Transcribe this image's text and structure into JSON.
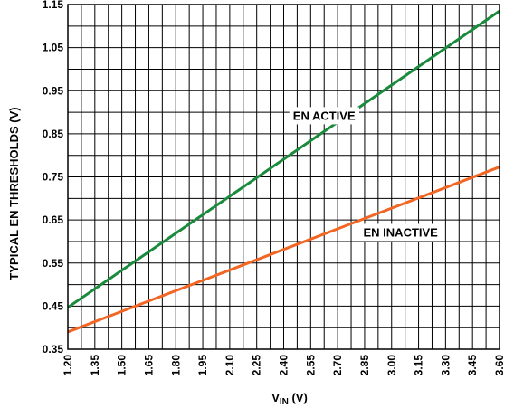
{
  "chart_data": {
    "type": "line",
    "xlabel_main": "V",
    "xlabel_sub": "IN",
    "xlabel_unit": " (V)",
    "ylabel": "TYPICAL EN THRESHOLDS (V)",
    "xlim": [
      1.2,
      3.6
    ],
    "ylim": [
      0.35,
      1.15
    ],
    "x_ticks": [
      "1.20",
      "1.35",
      "1.50",
      "1.65",
      "1.80",
      "1.95",
      "2.10",
      "2.25",
      "2.40",
      "2.55",
      "2.70",
      "2.85",
      "3.00",
      "3.15",
      "3.30",
      "3.45",
      "3.60"
    ],
    "y_ticks": [
      "0.35",
      "0.45",
      "0.55",
      "0.65",
      "0.75",
      "0.85",
      "0.95",
      "1.05",
      "1.15"
    ],
    "grid": true,
    "series": [
      {
        "name": "EN ACTIVE",
        "color": "#1a8a3c",
        "x": [
          1.2,
          3.6
        ],
        "y": [
          0.447,
          1.135
        ]
      },
      {
        "name": "EN INACTIVE",
        "color": "#f26522",
        "x": [
          1.2,
          3.6
        ],
        "y": [
          0.39,
          0.773
        ]
      }
    ],
    "annotations": [
      {
        "text": "EN ACTIVE",
        "x": 2.625,
        "y": 0.893
      },
      {
        "text": "EN INACTIVE",
        "x": 3.05,
        "y": 0.622
      }
    ]
  }
}
